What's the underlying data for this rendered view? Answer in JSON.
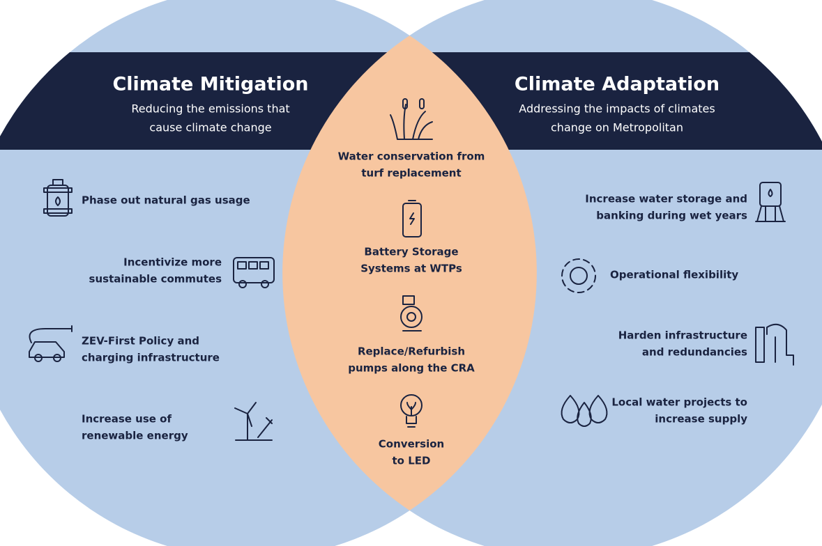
{
  "mitigation": {
    "title": "Climate Mitigation",
    "subtitle": [
      "Reducing the emissions that",
      "cause climate change"
    ],
    "items": [
      {
        "lines": [
          "Phase out natural gas usage"
        ]
      },
      {
        "lines": [
          "Incentivize more",
          "sustainable commutes"
        ]
      },
      {
        "lines": [
          "ZEV-First Policy and",
          "charging infrastructure"
        ]
      },
      {
        "lines": [
          "Increase use of",
          "renewable energy"
        ]
      }
    ]
  },
  "both": {
    "items": [
      {
        "lines": [
          "Water conservation from",
          "turf replacement"
        ]
      },
      {
        "lines": [
          "Battery Storage",
          "Systems at WTPs"
        ]
      },
      {
        "lines": [
          "Replace/Refurbish",
          "pumps along the CRA"
        ]
      },
      {
        "lines": [
          "Conversion",
          "to LED"
        ]
      }
    ]
  },
  "adaptation": {
    "title": "Climate Adaptation",
    "subtitle": [
      "Addressing the impacts of climates",
      "change on Metropolitan"
    ],
    "items": [
      {
        "lines": [
          "Increase water storage and",
          "banking during wet years"
        ]
      },
      {
        "lines": [
          "Operational flexibility"
        ]
      },
      {
        "lines": [
          "Harden infrastructure",
          "and redundancies"
        ]
      },
      {
        "lines": [
          "Local water projects to",
          "increase supply"
        ]
      }
    ]
  }
}
